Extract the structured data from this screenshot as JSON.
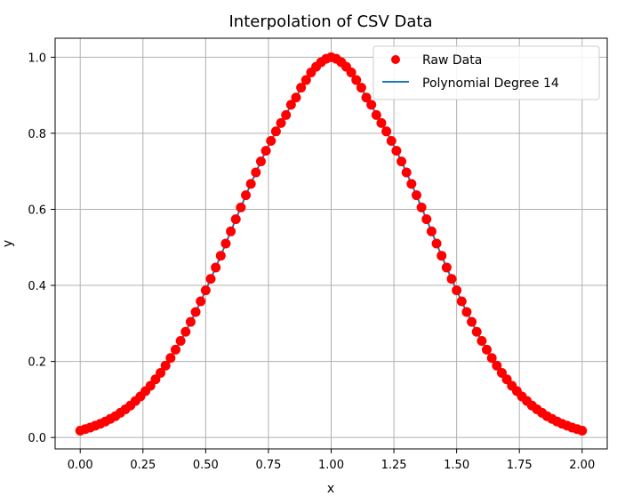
{
  "chart_data": {
    "type": "scatter",
    "title": "Interpolation of CSV Data",
    "xlabel": "x",
    "ylabel": "y",
    "xlim": [
      -0.1,
      2.1
    ],
    "ylim": [
      -0.03,
      1.05
    ],
    "xticks": [
      0.0,
      0.25,
      0.5,
      0.75,
      1.0,
      1.25,
      1.5,
      1.75,
      2.0
    ],
    "xtick_labels": [
      "0.00",
      "0.25",
      "0.50",
      "0.75",
      "1.00",
      "1.25",
      "1.50",
      "1.75",
      "2.00"
    ],
    "yticks": [
      0.0,
      0.2,
      0.4,
      0.6,
      0.8,
      1.0
    ],
    "ytick_labels": [
      "0.0",
      "0.2",
      "0.4",
      "0.6",
      "0.8",
      "1.0"
    ],
    "grid": true,
    "legend_position": "top-right",
    "series": [
      {
        "name": "Raw Data",
        "kind": "scatter",
        "color": "#ff0000",
        "x": [
          0.0,
          0.02,
          0.04,
          0.06,
          0.08,
          0.1,
          0.12,
          0.14,
          0.16,
          0.18,
          0.2,
          0.22,
          0.24,
          0.26,
          0.28,
          0.3,
          0.32,
          0.34,
          0.36,
          0.38,
          0.4,
          0.42,
          0.44,
          0.46,
          0.48,
          0.5,
          0.52,
          0.54,
          0.56,
          0.58,
          0.6,
          0.62,
          0.64,
          0.66,
          0.68,
          0.7,
          0.72,
          0.74,
          0.76,
          0.78,
          0.8,
          0.82,
          0.84,
          0.86,
          0.88,
          0.9,
          0.92,
          0.94,
          0.96,
          0.98,
          1.0,
          1.02,
          1.04,
          1.06,
          1.08,
          1.1,
          1.12,
          1.14,
          1.16,
          1.18,
          1.2,
          1.22,
          1.24,
          1.26,
          1.28,
          1.3,
          1.32,
          1.34,
          1.36,
          1.38,
          1.4,
          1.42,
          1.44,
          1.46,
          1.48,
          1.5,
          1.52,
          1.54,
          1.56,
          1.58,
          1.6,
          1.62,
          1.64,
          1.66,
          1.68,
          1.7,
          1.72,
          1.74,
          1.76,
          1.78,
          1.8,
          1.82,
          1.84,
          1.86,
          1.88,
          1.9,
          1.92,
          1.94,
          1.96,
          1.98,
          2.0
        ],
        "y": [
          0.018,
          0.022,
          0.026,
          0.031,
          0.036,
          0.042,
          0.049,
          0.056,
          0.065,
          0.074,
          0.084,
          0.096,
          0.108,
          0.122,
          0.136,
          0.153,
          0.17,
          0.189,
          0.209,
          0.231,
          0.254,
          0.278,
          0.304,
          0.33,
          0.358,
          0.387,
          0.417,
          0.447,
          0.478,
          0.51,
          0.542,
          0.574,
          0.605,
          0.637,
          0.667,
          0.697,
          0.726,
          0.754,
          0.78,
          0.805,
          0.827,
          0.848,
          0.875,
          0.894,
          0.92,
          0.94,
          0.96,
          0.975,
          0.987,
          0.996,
          1.0,
          0.996,
          0.987,
          0.975,
          0.96,
          0.94,
          0.92,
          0.894,
          0.875,
          0.848,
          0.827,
          0.805,
          0.78,
          0.754,
          0.726,
          0.697,
          0.667,
          0.637,
          0.605,
          0.574,
          0.542,
          0.51,
          0.478,
          0.447,
          0.417,
          0.387,
          0.358,
          0.33,
          0.304,
          0.278,
          0.254,
          0.231,
          0.209,
          0.189,
          0.17,
          0.153,
          0.136,
          0.122,
          0.108,
          0.096,
          0.084,
          0.074,
          0.065,
          0.056,
          0.049,
          0.042,
          0.036,
          0.031,
          0.026,
          0.022,
          0.018
        ]
      },
      {
        "name": "Polynomial Degree 14",
        "kind": "line",
        "color": "#1f77b4"
      }
    ]
  }
}
